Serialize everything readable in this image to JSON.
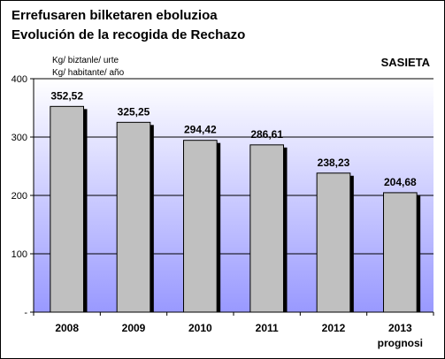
{
  "title_line1": "Errefusaren bilketaren eboluzioa",
  "title_line2": "Evolución de la recogida de Rechazo",
  "unit_line1": "Kg/ biztanle/ urte",
  "unit_line2": "Kg/ habitante/ año",
  "tag": "SASIETA",
  "colors": {
    "bar": "#c0c0c0",
    "bar_shadow": "#000000",
    "plot_top": "#ffffff",
    "plot_bottom": "#9999ff",
    "gridline": "#000000"
  },
  "chart_data": {
    "type": "bar",
    "title": "Errefusaren bilketaren eboluzioa / Evolución de la recogida de Rechazo",
    "categories": [
      "2008",
      "2009",
      "2010",
      "2011",
      "2012",
      "2013"
    ],
    "category_sublabels": [
      "",
      "",
      "",
      "",
      "",
      "prognosi"
    ],
    "values": [
      352.52,
      325.25,
      294.42,
      286.61,
      238.23,
      204.68
    ],
    "value_labels": [
      "352,52",
      "325,25",
      "294,42",
      "286,61",
      "238,23",
      "204,68"
    ],
    "ylabel": "Kg/ biztanle/ urte — Kg/ habitante/ año",
    "ylim": [
      0,
      400
    ],
    "yticks": [
      0,
      100,
      200,
      300,
      400
    ],
    "ytick_labels": [
      "-",
      "100",
      "200",
      "300",
      "400"
    ],
    "grid": true,
    "legend": "none"
  }
}
